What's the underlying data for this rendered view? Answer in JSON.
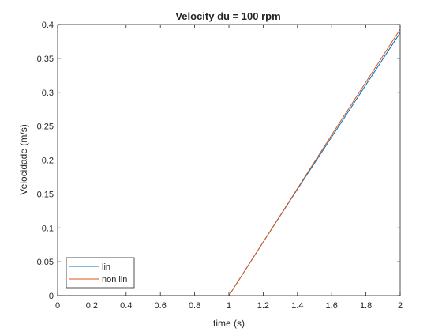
{
  "chart_data": {
    "type": "line",
    "title": "Velocity du = 100 rpm",
    "xlabel": "time (s)",
    "ylabel": "Velocidade (m/s)",
    "xlim": [
      0,
      2
    ],
    "ylim": [
      0,
      0.4
    ],
    "xticks": [
      "0",
      "0.2",
      "0.4",
      "0.6",
      "0.8",
      "1",
      "1.2",
      "1.4",
      "1.6",
      "1.8",
      "2"
    ],
    "yticks": [
      "0",
      "0.05",
      "0.1",
      "0.15",
      "0.2",
      "0.25",
      "0.3",
      "0.35",
      "0.4"
    ],
    "grid": false,
    "legend_position": "bottom-left",
    "series": [
      {
        "name": "lin",
        "color": "#0072BD",
        "x": [
          0,
          1.0,
          1.2,
          1.4,
          1.6,
          1.8,
          2.0
        ],
        "y": [
          0,
          0,
          0.079,
          0.157,
          0.234,
          0.311,
          0.388
        ]
      },
      {
        "name": "non lin",
        "color": "#D95319",
        "x": [
          0,
          1.0,
          1.2,
          1.4,
          1.6,
          1.8,
          2.0
        ],
        "y": [
          0,
          0,
          0.079,
          0.158,
          0.237,
          0.315,
          0.393
        ]
      }
    ]
  }
}
